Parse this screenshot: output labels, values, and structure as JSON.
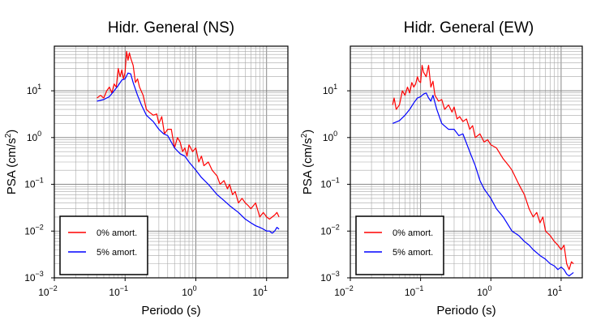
{
  "chart_data": [
    {
      "type": "line",
      "title": "Hidr. General (NS)",
      "xlabel": "Periodo (s)",
      "ylabel_main": "PSA (cm/s",
      "ylabel_sup": "2",
      "ylabel_close": ")",
      "xscale": "log",
      "yscale": "log",
      "xlim": [
        0.01,
        20
      ],
      "ylim": [
        0.001,
        90
      ],
      "grid": true,
      "legend_position": "bottom-left",
      "x_ticks": [
        {
          "value": 0.01,
          "base": "10",
          "exp": "−2"
        },
        {
          "value": 0.1,
          "base": "10",
          "exp": "−1"
        },
        {
          "value": 1,
          "base": "10",
          "exp": "0"
        },
        {
          "value": 10,
          "base": "10",
          "exp": "1"
        }
      ],
      "y_ticks": [
        {
          "value": 0.001,
          "base": "10",
          "exp": "−3"
        },
        {
          "value": 0.01,
          "base": "10",
          "exp": "−2"
        },
        {
          "value": 0.1,
          "base": "10",
          "exp": "−1"
        },
        {
          "value": 1,
          "base": "10",
          "exp": "0"
        },
        {
          "value": 10,
          "base": "10",
          "exp": "1"
        }
      ],
      "series": [
        {
          "name": "0% amort.",
          "color": "#ff0000",
          "x": [
            0.04,
            0.045,
            0.05,
            0.055,
            0.06,
            0.065,
            0.07,
            0.075,
            0.08,
            0.085,
            0.09,
            0.095,
            0.1,
            0.105,
            0.11,
            0.115,
            0.12,
            0.13,
            0.14,
            0.15,
            0.16,
            0.18,
            0.2,
            0.22,
            0.25,
            0.28,
            0.3,
            0.33,
            0.36,
            0.4,
            0.45,
            0.5,
            0.55,
            0.6,
            0.65,
            0.7,
            0.75,
            0.8,
            0.9,
            1.0,
            1.1,
            1.2,
            1.3,
            1.5,
            1.7,
            2.0,
            2.2,
            2.5,
            2.8,
            3.0,
            3.3,
            3.6,
            4.0,
            4.5,
            5.0,
            5.5,
            6.0,
            7.0,
            8.0,
            9.0,
            10,
            11,
            12,
            13,
            14,
            15
          ],
          "values": [
            7,
            8,
            7,
            10,
            12,
            9,
            14,
            12,
            30,
            20,
            28,
            18,
            25,
            70,
            45,
            65,
            50,
            35,
            15,
            18,
            12,
            8,
            4,
            3.5,
            3,
            3.2,
            2,
            2.8,
            1.2,
            1.5,
            1.5,
            0.6,
            1.0,
            0.8,
            0.5,
            0.6,
            0.4,
            0.7,
            0.5,
            0.6,
            0.3,
            0.4,
            0.25,
            0.3,
            0.2,
            0.15,
            0.1,
            0.12,
            0.08,
            0.1,
            0.06,
            0.07,
            0.04,
            0.05,
            0.04,
            0.035,
            0.03,
            0.04,
            0.02,
            0.025,
            0.02,
            0.018,
            0.02,
            0.022,
            0.025,
            0.02
          ]
        },
        {
          "name": "5% amort.",
          "color": "#0000ff",
          "x": [
            0.04,
            0.05,
            0.06,
            0.07,
            0.08,
            0.09,
            0.1,
            0.11,
            0.12,
            0.13,
            0.15,
            0.17,
            0.2,
            0.25,
            0.3,
            0.35,
            0.4,
            0.5,
            0.6,
            0.7,
            0.8,
            1.0,
            1.2,
            1.5,
            2.0,
            2.5,
            3.0,
            4.0,
            5.0,
            6.0,
            7.0,
            8.0,
            9.0,
            10,
            11,
            12,
            13,
            14,
            15
          ],
          "values": [
            6,
            6.5,
            7.5,
            10,
            13,
            17,
            18,
            24,
            23,
            15,
            8,
            5,
            3,
            2.2,
            1.5,
            1.2,
            1.1,
            0.6,
            0.45,
            0.4,
            0.3,
            0.2,
            0.14,
            0.1,
            0.06,
            0.045,
            0.035,
            0.025,
            0.018,
            0.015,
            0.013,
            0.012,
            0.011,
            0.01,
            0.01,
            0.009,
            0.01,
            0.012,
            0.011
          ]
        }
      ]
    },
    {
      "type": "line",
      "title": "Hidr. General (EW)",
      "xlabel": "Periodo (s)",
      "ylabel_main": "PSA (cm/s",
      "ylabel_sup": "2",
      "ylabel_close": ")",
      "xscale": "log",
      "yscale": "log",
      "xlim": [
        0.01,
        20
      ],
      "ylim": [
        0.001,
        90
      ],
      "grid": true,
      "legend_position": "bottom-left",
      "x_ticks": [
        {
          "value": 0.01,
          "base": "10",
          "exp": "−2"
        },
        {
          "value": 0.1,
          "base": "10",
          "exp": "−1"
        },
        {
          "value": 1,
          "base": "10",
          "exp": "0"
        },
        {
          "value": 10,
          "base": "10",
          "exp": "1"
        }
      ],
      "y_ticks": [
        {
          "value": 0.001,
          "base": "10",
          "exp": "−3"
        },
        {
          "value": 0.01,
          "base": "10",
          "exp": "−2"
        },
        {
          "value": 0.1,
          "base": "10",
          "exp": "−1"
        },
        {
          "value": 1,
          "base": "10",
          "exp": "0"
        },
        {
          "value": 10,
          "base": "10",
          "exp": "1"
        }
      ],
      "series": [
        {
          "name": "0% amort.",
          "color": "#ff0000",
          "x": [
            0.04,
            0.042,
            0.045,
            0.05,
            0.055,
            0.06,
            0.065,
            0.07,
            0.075,
            0.08,
            0.085,
            0.09,
            0.095,
            0.1,
            0.105,
            0.11,
            0.12,
            0.13,
            0.14,
            0.15,
            0.16,
            0.18,
            0.2,
            0.22,
            0.25,
            0.28,
            0.3,
            0.33,
            0.36,
            0.4,
            0.45,
            0.5,
            0.55,
            0.6,
            0.7,
            0.8,
            0.9,
            1.0,
            1.2,
            1.5,
            1.8,
            2.0,
            2.5,
            3.0,
            3.5,
            4.0,
            4.5,
            5.0,
            5.5,
            6.0,
            7.0,
            8.0,
            9.0,
            10,
            11,
            12,
            13,
            14,
            15
          ],
          "values": [
            5,
            7,
            4,
            5,
            10,
            8,
            12,
            9,
            15,
            12,
            14,
            20,
            16,
            15,
            35,
            25,
            20,
            35,
            12,
            16,
            8,
            6,
            6.5,
            4,
            5,
            3.5,
            4.5,
            2.5,
            2.8,
            2.2,
            2.5,
            1.5,
            1.8,
            1.0,
            1.2,
            0.8,
            0.9,
            0.7,
            0.6,
            0.35,
            0.25,
            0.2,
            0.1,
            0.06,
            0.03,
            0.02,
            0.025,
            0.015,
            0.02,
            0.01,
            0.008,
            0.006,
            0.005,
            0.004,
            0.005,
            0.002,
            0.0015,
            0.0022,
            0.002
          ]
        },
        {
          "name": "5% amort.",
          "color": "#0000ff",
          "x": [
            0.04,
            0.05,
            0.06,
            0.07,
            0.08,
            0.09,
            0.1,
            0.11,
            0.12,
            0.13,
            0.14,
            0.15,
            0.17,
            0.2,
            0.25,
            0.3,
            0.35,
            0.4,
            0.5,
            0.6,
            0.7,
            0.8,
            1.0,
            1.2,
            1.5,
            2.0,
            2.5,
            3.0,
            3.5,
            4.0,
            5.0,
            6.0,
            7.0,
            8.0,
            9.0,
            10,
            11,
            12,
            13,
            14,
            15
          ],
          "values": [
            2,
            2.3,
            3,
            4,
            5.5,
            7,
            7.5,
            8.5,
            9,
            7,
            6,
            8,
            4,
            2,
            1.5,
            1.5,
            1.1,
            1.2,
            0.5,
            0.25,
            0.12,
            0.08,
            0.05,
            0.03,
            0.02,
            0.01,
            0.008,
            0.006,
            0.005,
            0.004,
            0.003,
            0.0025,
            0.002,
            0.0018,
            0.0015,
            0.0017,
            0.0015,
            0.0012,
            0.0011,
            0.0012,
            0.0013
          ]
        }
      ]
    }
  ]
}
